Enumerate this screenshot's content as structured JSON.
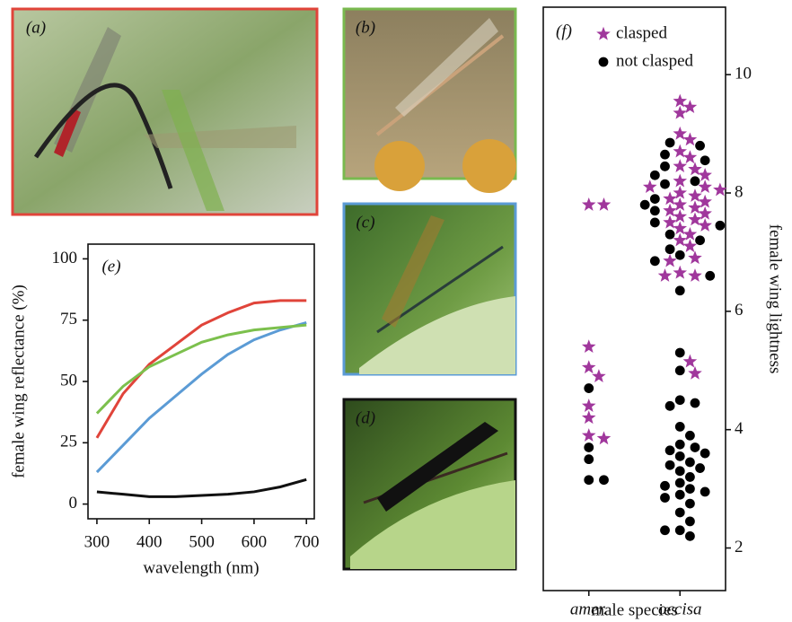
{
  "panels": {
    "labels": [
      "(a)",
      "(b)",
      "(c)",
      "(d)"
    ]
  },
  "chart_data": [
    {
      "type": "line",
      "panel_label": "(e)",
      "x_label": "wavelength (nm)",
      "y_label": "female wing reflectance (%)",
      "x": [
        300,
        350,
        400,
        450,
        500,
        550,
        600,
        650,
        700
      ],
      "series": [
        {
          "name": "red",
          "color": "#e0443a",
          "values": [
            27,
            45,
            57,
            65,
            73,
            78,
            82,
            83,
            83
          ]
        },
        {
          "name": "blue",
          "color": "#5b9bd5",
          "values": [
            13,
            24,
            35,
            44,
            53,
            61,
            67,
            71,
            74
          ]
        },
        {
          "name": "green",
          "color": "#7cc04d",
          "values": [
            37,
            48,
            56,
            61,
            66,
            69,
            71,
            72,
            73
          ]
        },
        {
          "name": "black",
          "color": "#111111",
          "values": [
            5,
            4,
            3,
            3,
            3.5,
            4,
            5,
            7,
            10
          ]
        }
      ],
      "xlim": [
        283,
        715
      ],
      "ylim": [
        -6,
        106
      ],
      "xticks": [
        300,
        400,
        500,
        600,
        700
      ],
      "yticks": [
        0,
        25,
        50,
        75,
        100
      ]
    },
    {
      "type": "strip",
      "panel_label": "(f)",
      "x_label": "male species",
      "y_label": "female wing lightness",
      "y_axis_side": "right",
      "categories": [
        "amer.",
        "occisa"
      ],
      "series": [
        {
          "name": "clasped",
          "color": "#a0379c",
          "marker": "star",
          "values": [
            [
              7.8,
              7.8,
              5.4,
              5.05,
              4.9,
              4.4,
              4.2,
              3.9,
              3.85
            ],
            [
              9.55,
              9.45,
              9.35,
              9.0,
              8.9,
              8.7,
              8.6,
              8.45,
              8.4,
              8.3,
              8.2,
              8.1,
              8.1,
              8.05,
              8.0,
              7.95,
              7.9,
              7.85,
              7.8,
              7.75,
              7.7,
              7.65,
              7.6,
              7.55,
              7.5,
              7.45,
              7.4,
              7.3,
              7.2,
              7.1,
              6.9,
              6.85,
              6.65,
              6.6,
              6.6,
              5.15,
              4.95
            ]
          ]
        },
        {
          "name": "not clasped",
          "color": "#000000",
          "marker": "circle",
          "values": [
            [
              4.7,
              3.7,
              3.5,
              3.15,
              3.15
            ],
            [
              8.85,
              8.8,
              8.65,
              8.55,
              8.45,
              8.3,
              8.2,
              8.15,
              7.9,
              7.8,
              7.7,
              7.5,
              7.45,
              7.3,
              7.2,
              7.05,
              6.95,
              6.85,
              6.6,
              6.35,
              5.3,
              5.0,
              4.5,
              4.45,
              4.4,
              4.05,
              3.9,
              3.75,
              3.7,
              3.65,
              3.6,
              3.55,
              3.45,
              3.4,
              3.35,
              3.3,
              3.2,
              3.1,
              3.05,
              3.0,
              2.95,
              2.9,
              2.85,
              2.75,
              2.6,
              2.45,
              2.3,
              2.3,
              2.2
            ]
          ]
        }
      ],
      "ylim": [
        1.28,
        11.14
      ],
      "yticks": [
        2,
        4,
        6,
        8,
        10
      ]
    }
  ]
}
